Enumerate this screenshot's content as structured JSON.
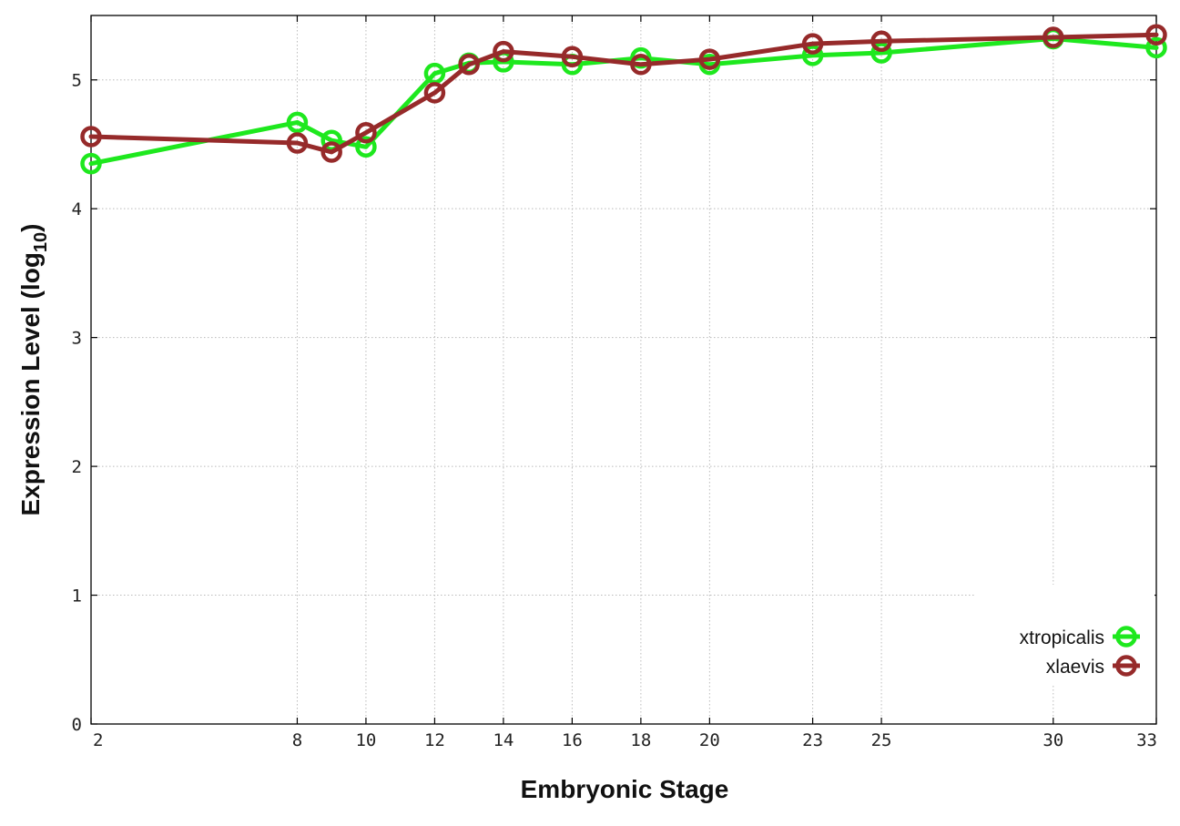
{
  "chart_data": {
    "type": "line",
    "xlabel": "Embryonic Stage",
    "ylabel_main": "Expression Level (log",
    "ylabel_sub": "10",
    "ylabel_close": ")",
    "xlim": [
      2,
      33
    ],
    "ylim": [
      0,
      5.5
    ],
    "x_ticks": [
      2,
      8,
      10,
      12,
      14,
      16,
      18,
      20,
      23,
      25,
      30,
      33
    ],
    "y_ticks": [
      0,
      1,
      2,
      3,
      4,
      5
    ],
    "grid": true,
    "legend_position": "bottom-right",
    "series": [
      {
        "name": "xtropicalis",
        "color": "#1ee81e",
        "x": [
          2,
          8,
          9,
          10,
          12,
          13,
          14,
          16,
          18,
          20,
          23,
          25,
          30,
          33
        ],
        "y": [
          4.35,
          4.67,
          4.53,
          4.48,
          5.05,
          5.13,
          5.14,
          5.12,
          5.17,
          5.12,
          5.19,
          5.21,
          5.32,
          5.25
        ]
      },
      {
        "name": "xlaevis",
        "color": "#962a2a",
        "x": [
          2,
          8,
          9,
          10,
          12,
          13,
          14,
          16,
          18,
          20,
          23,
          25,
          30,
          33
        ],
        "y": [
          4.56,
          4.51,
          4.44,
          4.59,
          4.9,
          5.12,
          5.22,
          5.18,
          5.12,
          5.16,
          5.28,
          5.3,
          5.33,
          5.35
        ]
      }
    ]
  }
}
